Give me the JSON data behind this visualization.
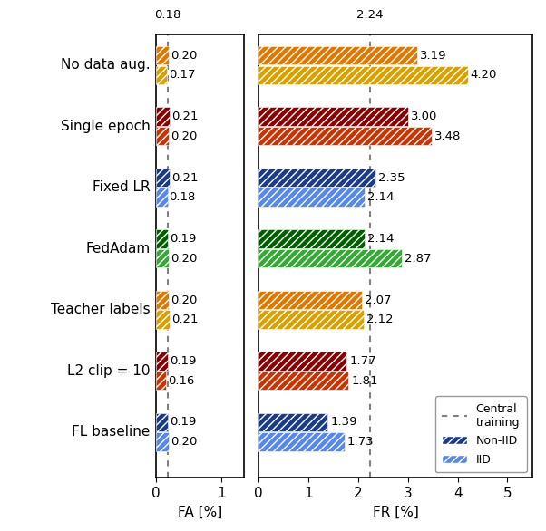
{
  "categories": [
    "No data aug.",
    "Single epoch",
    "Fixed LR",
    "FedAdam",
    "Teacher labels",
    "L2 clip = 10",
    "FL baseline"
  ],
  "fa_noniid": [
    0.2,
    0.21,
    0.21,
    0.19,
    0.2,
    0.19,
    0.19
  ],
  "fa_iid": [
    0.17,
    0.2,
    0.18,
    0.2,
    0.21,
    0.16,
    0.2
  ],
  "fr_noniid": [
    3.19,
    3.0,
    2.35,
    2.14,
    2.07,
    1.77,
    1.39
  ],
  "fr_iid": [
    4.2,
    3.48,
    2.14,
    2.87,
    2.12,
    1.81,
    1.73
  ],
  "fa_central": 0.18,
  "fr_central": 2.24,
  "colors_noniid": [
    "#E07800",
    "#8B0000",
    "#1A3A8A",
    "#006000",
    "#E07800",
    "#8B0000",
    "#1A3A8A"
  ],
  "colors_iid": [
    "#DAA000",
    "#CC3300",
    "#5588EE",
    "#33AA33",
    "#DAA000",
    "#CC3300",
    "#5588EE"
  ],
  "fa_xlim": [
    0,
    1.35
  ],
  "fr_xlim": [
    0,
    5.5
  ],
  "fa_xticks": [
    0,
    1
  ],
  "fr_xticks": [
    0,
    1,
    2,
    3,
    4,
    5
  ],
  "bar_height": 0.3,
  "hatch": "////",
  "label_fontsize": 11,
  "tick_fontsize": 11,
  "value_fontsize": 9.5
}
